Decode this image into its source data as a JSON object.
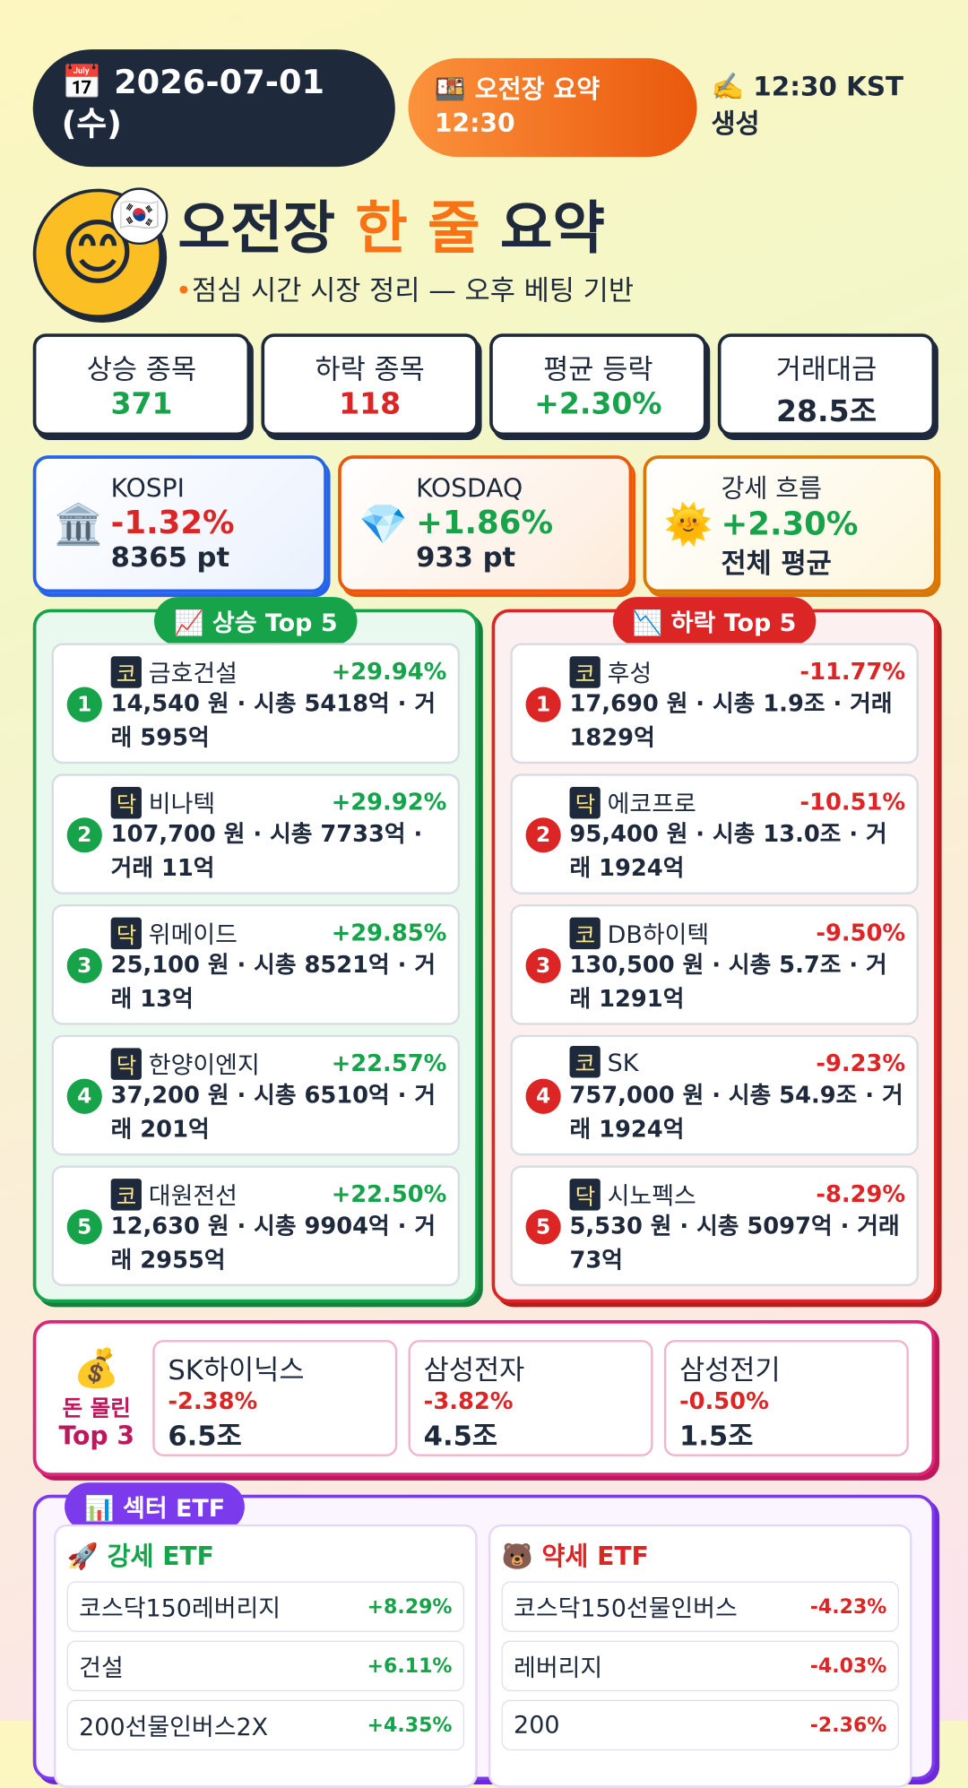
{
  "header": {
    "date": "📅 2026-07-01 (수)",
    "badge": "🍱 오전장 요약 12:30",
    "generated": "✍️ 12:30 KST 생성"
  },
  "title": {
    "part1": "오전장",
    "highlight": "한 줄",
    "part2": "요약",
    "subtitle": "점심 시간 시장 정리 — 오후 베팅 기반"
  },
  "stats": [
    {
      "label": "상승 종목",
      "value": "371"
    },
    {
      "label": "하락 종목",
      "value": "118"
    },
    {
      "label": "평균 등락",
      "value": "+2.30%"
    },
    {
      "label": "거래대금",
      "value": "28.5조"
    }
  ],
  "indices": [
    {
      "name": "KOSPI",
      "change": "-1.32%",
      "level": "8365 pt"
    },
    {
      "name": "KOSDAQ",
      "change": "+1.86%",
      "level": "933 pt"
    },
    {
      "name": "강세 흐름",
      "change": "+2.30%",
      "level": "전체 평균"
    }
  ],
  "gainers": {
    "title": "📈 상승 Top 5",
    "items": [
      {
        "rank": "1",
        "market": "코",
        "name": "금호건설",
        "change": "+29.94%",
        "detail": "14,540 원 · 시총 5418억 · 거래 595억"
      },
      {
        "rank": "2",
        "market": "닥",
        "name": "비나텍",
        "change": "+29.92%",
        "detail": "107,700 원 · 시총 7733억 · 거래 11억"
      },
      {
        "rank": "3",
        "market": "닥",
        "name": "위메이드",
        "change": "+29.85%",
        "detail": "25,100 원 · 시총 8521억 · 거래 13억"
      },
      {
        "rank": "4",
        "market": "닥",
        "name": "한양이엔지",
        "change": "+22.57%",
        "detail": "37,200 원 · 시총 6510억 · 거래 201억"
      },
      {
        "rank": "5",
        "market": "코",
        "name": "대원전선",
        "change": "+22.50%",
        "detail": "12,630 원 · 시총 9904억 · 거래 2955억"
      }
    ]
  },
  "losers": {
    "title": "📉 하락 Top 5",
    "items": [
      {
        "rank": "1",
        "market": "코",
        "name": "후성",
        "change": "-11.77%",
        "detail": "17,690 원 · 시총 1.9조 · 거래 1829억"
      },
      {
        "rank": "2",
        "market": "닥",
        "name": "에코프로",
        "change": "-10.51%",
        "detail": "95,400 원 · 시총 13.0조 · 거래 1924억"
      },
      {
        "rank": "3",
        "market": "코",
        "name": "DB하이텍",
        "change": "-9.50%",
        "detail": "130,500 원 · 시총 5.7조 · 거래 1291억"
      },
      {
        "rank": "4",
        "market": "코",
        "name": "SK",
        "change": "-9.23%",
        "detail": "757,000 원 · 시총 54.9조 · 거래 1924억"
      },
      {
        "rank": "5",
        "market": "닥",
        "name": "시노펙스",
        "change": "-8.29%",
        "detail": "5,530 원 · 시총 5097억 · 거래 73억"
      }
    ]
  },
  "money": {
    "label": "돈 몰린",
    "label2": "Top 3",
    "items": [
      {
        "name": "SK하이닉스",
        "change": "-2.38%",
        "amount": "6.5조"
      },
      {
        "name": "삼성전자",
        "change": "-3.82%",
        "amount": "4.5조"
      },
      {
        "name": "삼성전기",
        "change": "-0.50%",
        "amount": "1.5조"
      }
    ]
  },
  "etf": {
    "title": "📊 섹터 ETF",
    "strong": {
      "title": "🚀 강세 ETF",
      "items": [
        {
          "name": "코스닥150레버리지",
          "change": "+8.29%"
        },
        {
          "name": "건설",
          "change": "+6.11%"
        },
        {
          "name": "200선물인버스2X",
          "change": "+4.35%"
        }
      ]
    },
    "weak": {
      "title": "🐻 약세 ETF",
      "items": [
        {
          "name": "코스닥150선물인버스",
          "change": "-4.23%"
        },
        {
          "name": "레버리지",
          "change": "-4.03%"
        },
        {
          "name": "200",
          "change": "-2.36%"
        }
      ]
    }
  }
}
